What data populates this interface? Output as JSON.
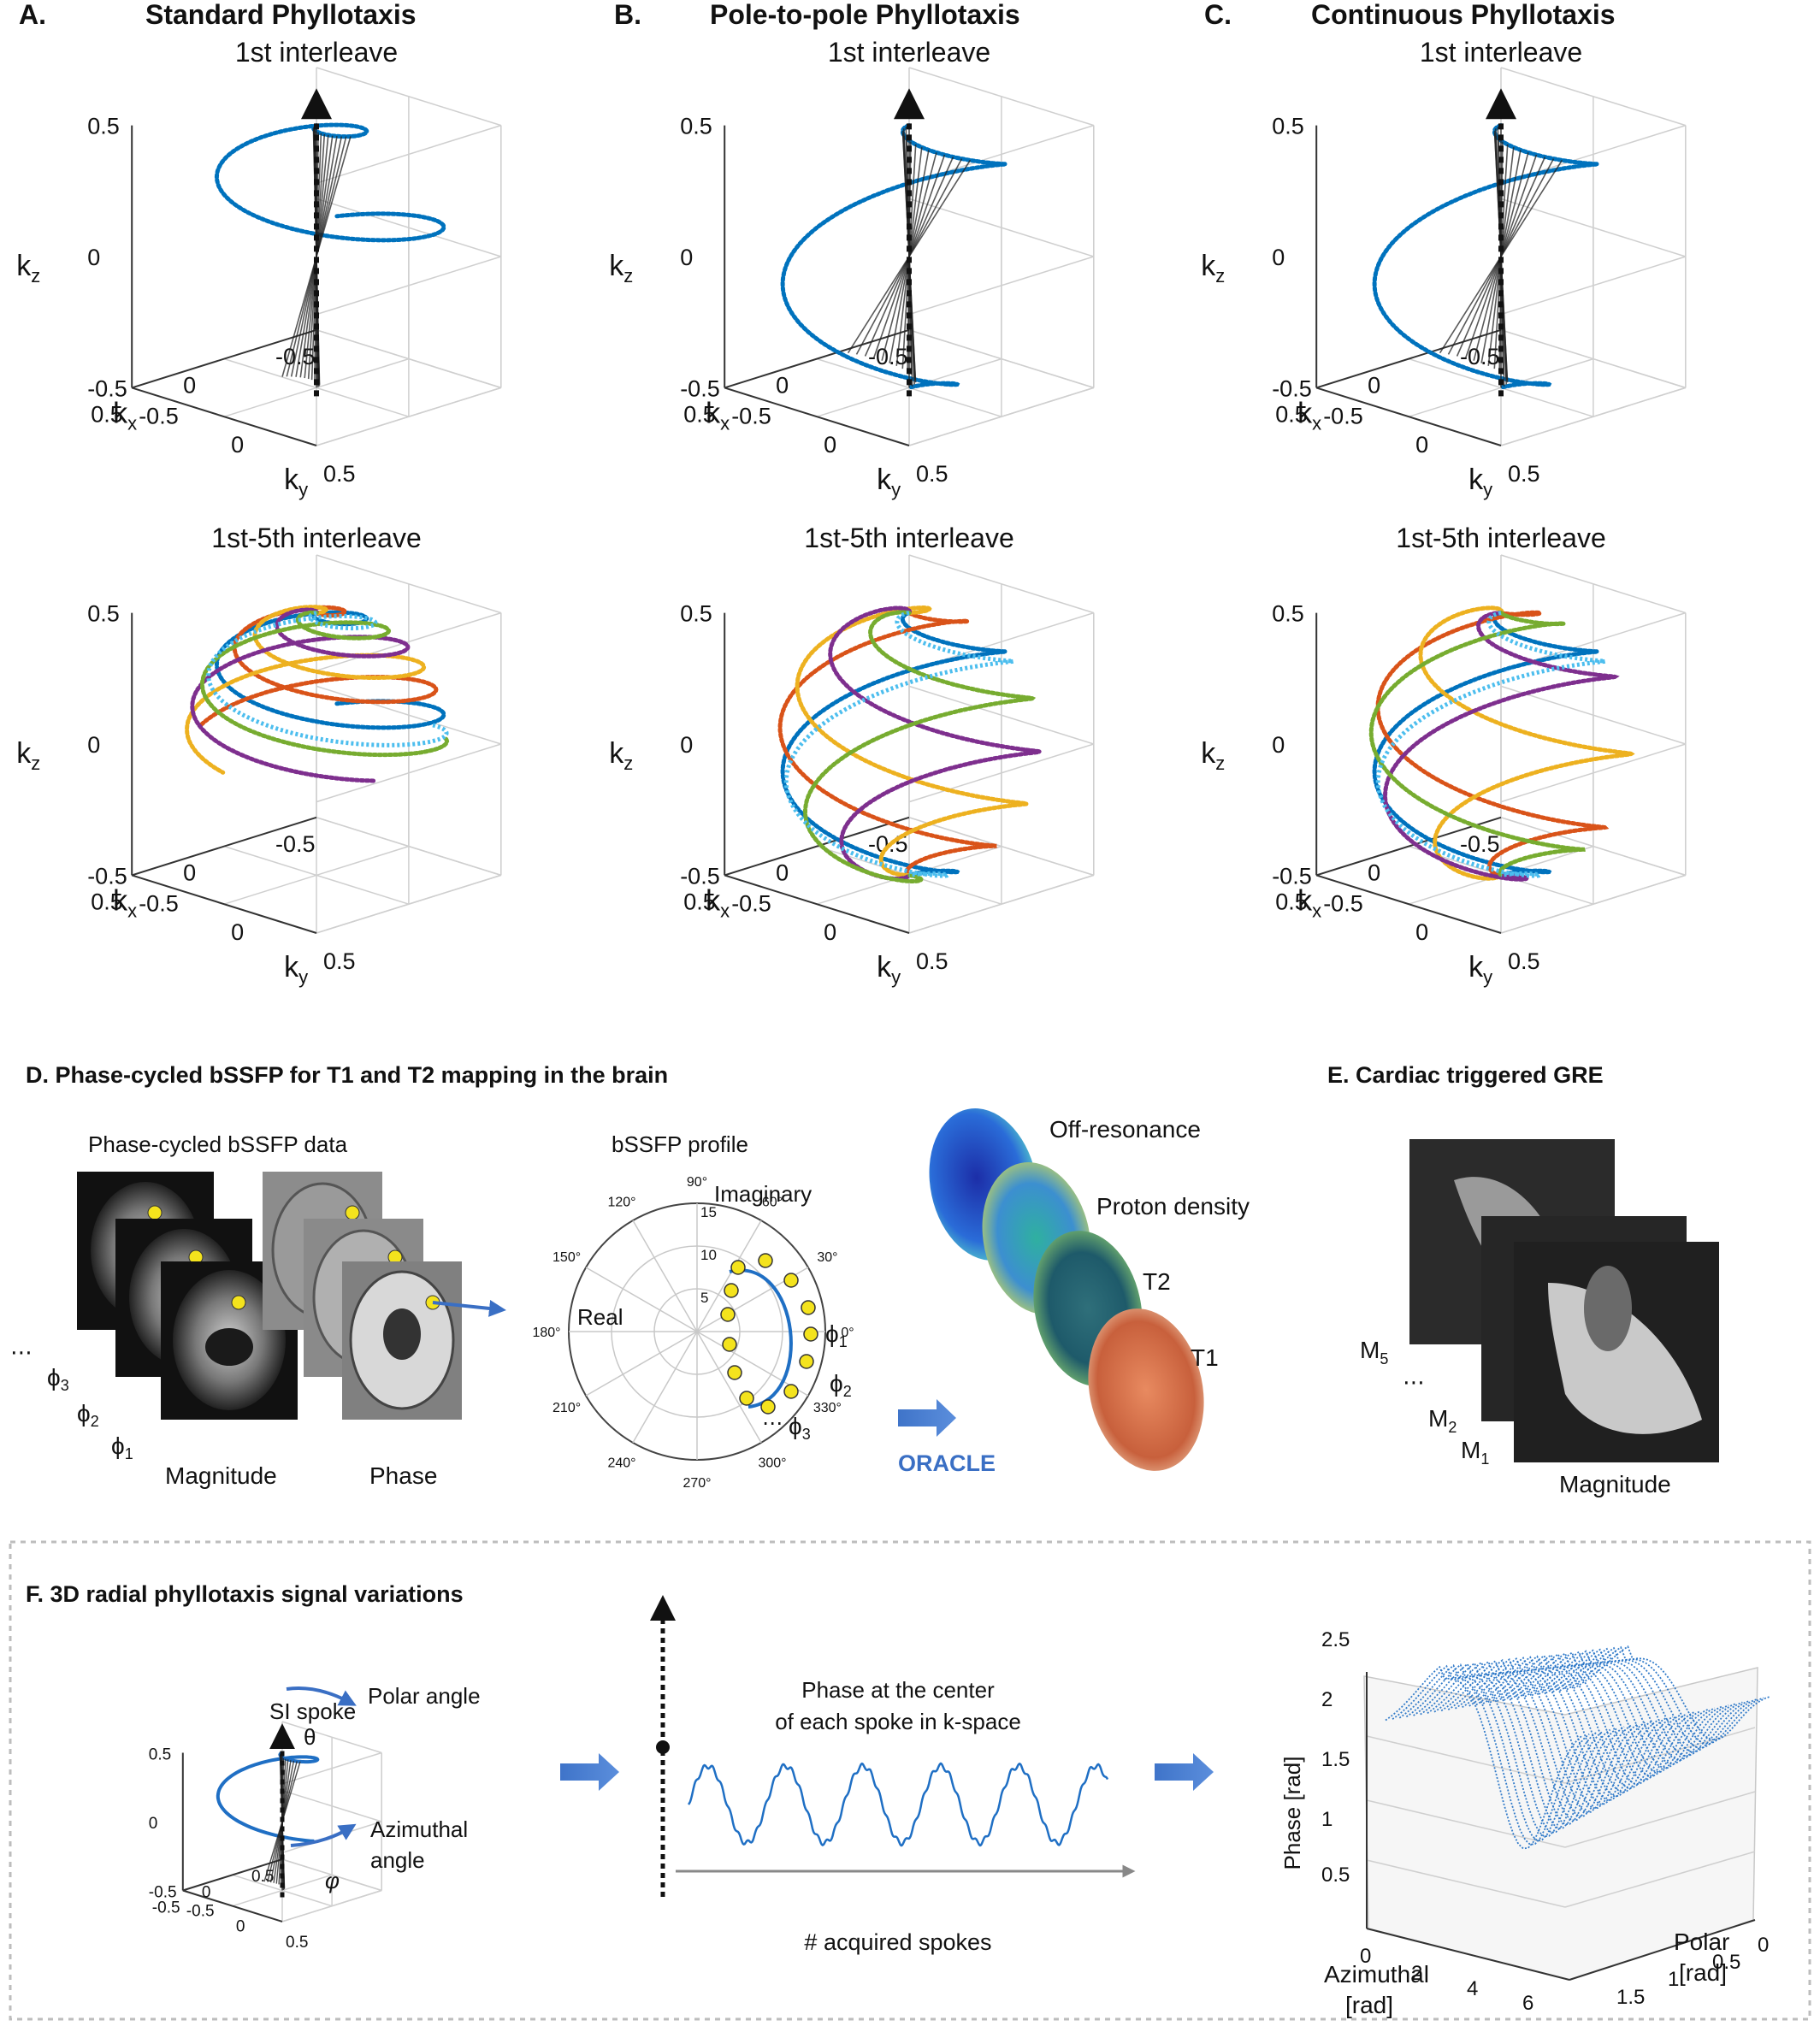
{
  "panels": [
    {
      "letter": "A.",
      "title": "Standard Phyllotaxis"
    },
    {
      "letter": "B.",
      "title": "Pole-to-pole Phyllotaxis"
    },
    {
      "letter": "C.",
      "title": "Continuous Phyllotaxis"
    }
  ],
  "row_titles": {
    "first": "1st interleave",
    "first_five": "1st-5th interleave"
  },
  "axis": {
    "kz": "k",
    "kz_sub": "z",
    "kx": "k",
    "kx_sub": "x",
    "ky": "k",
    "ky_sub": "y",
    "z_ticks": [
      "0.5",
      "0",
      "-0.5"
    ],
    "x_ticks": [
      "0.5",
      "0",
      "-0.5"
    ],
    "y_ticks": [
      "-0.5",
      "0",
      "0.5"
    ]
  },
  "series_colors": [
    "#0072BD",
    "#D95319",
    "#EDB120",
    "#7E2F8E",
    "#77AC30",
    "#4DBEEE"
  ],
  "panel_d": {
    "title": "D. Phase-cycled bSSFP for T1 and T2 mapping in the brain",
    "data_title": "Phase-cycled bSSFP data",
    "magnitude": "Magnitude",
    "phase": "Phase",
    "dots": "⋯",
    "phi": "ϕ",
    "phi_subs": [
      "3",
      "2",
      "1"
    ],
    "profile_title": "bSSFP profile",
    "imaginary": "Imaginary",
    "real": "Real",
    "angle_labels": [
      "90°",
      "60°",
      "30°",
      "0°",
      "330°",
      "300°",
      "270°",
      "240°",
      "210°",
      "180°",
      "150°",
      "120°"
    ],
    "radial_labels": [
      "5",
      "10",
      "15"
    ],
    "oracle": "ORACLE",
    "maps": [
      "Off-resonance",
      "Proton density",
      "T2",
      "T1"
    ]
  },
  "panel_e": {
    "title": "E. Cardiac triggered GRE",
    "m": "M",
    "m5": "5",
    "m2": "2",
    "m1": "1",
    "dots": "⋯",
    "magnitude": "Magnitude"
  },
  "panel_f": {
    "title": "F. 3D radial phyllotaxis signal variations",
    "si_spoke": "SI spoke",
    "polar_angle": "Polar angle",
    "theta": "θ",
    "azimuthal_angle_1": "Azimuthal",
    "azimuthal_angle_2": "angle",
    "phi": "φ",
    "ticks_z": [
      "0.5",
      "0",
      "-0.5"
    ],
    "ticks_x": [
      "0.5",
      "0",
      "-0.5"
    ],
    "ticks_y": [
      "-0.5",
      "0",
      "0.5"
    ],
    "phase_center_1": "Phase at the center",
    "phase_center_2": "of each spoke in k-space",
    "acquired": "# acquired spokes",
    "phase_axis": "Phase [rad]",
    "phase_ticks": [
      "2.5",
      "2",
      "1.5",
      "1",
      "0.5"
    ],
    "azimuthal_axis_1": "Azimuthal",
    "azimuthal_axis_2": "[rad]",
    "azimuthal_ticks": [
      "0",
      "2",
      "4",
      "6"
    ],
    "polar_axis_1": "Polar",
    "polar_axis_2": "[rad]",
    "polar_ticks": [
      "0",
      "0.5",
      "1",
      "1.5"
    ]
  }
}
